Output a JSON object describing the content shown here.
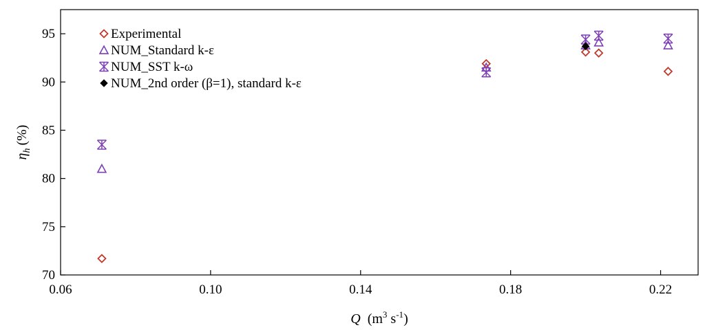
{
  "chart_data": {
    "type": "scatter",
    "title": "",
    "xlabel": {
      "symbol": "Q",
      "text": "(m",
      "sup1": "3",
      "mid": " s",
      "sup2": "-1",
      "end": ")"
    },
    "ylabel": {
      "symbol": "η",
      "sub": "h",
      "text": "(%)"
    },
    "xlim": [
      0.06,
      0.23
    ],
    "ylim": [
      70,
      97.5
    ],
    "xticks": [
      0.06,
      0.1,
      0.14,
      0.18,
      0.22
    ],
    "xtick_labels": [
      "0.06",
      "0.10",
      "0.14",
      "0.18",
      "0.22"
    ],
    "yticks": [
      70,
      75,
      80,
      85,
      90,
      95
    ],
    "ytick_labels": [
      "70",
      "75",
      "80",
      "85",
      "90",
      "95"
    ],
    "grid": false,
    "legend_position": "top-left",
    "series": [
      {
        "name": "Experimental",
        "marker": "diamond",
        "color": "#c0392b",
        "points": [
          [
            0.071,
            71.7
          ],
          [
            0.1735,
            91.9
          ],
          [
            0.2,
            93.1
          ],
          [
            0.2035,
            93.0
          ],
          [
            0.222,
            91.1
          ]
        ]
      },
      {
        "name": "NUM_Standard k-ε",
        "marker": "triangle",
        "color": "#7d3fb5",
        "points": [
          [
            0.071,
            81.0
          ],
          [
            0.1735,
            91.5
          ],
          [
            0.2,
            93.8
          ],
          [
            0.2035,
            94.1
          ],
          [
            0.222,
            93.8
          ]
        ]
      },
      {
        "name": "NUM_SST k-ω",
        "marker": "asterisk",
        "color": "#7d3fb5",
        "points": [
          [
            0.071,
            83.5
          ],
          [
            0.1735,
            91.0
          ],
          [
            0.2,
            94.4
          ],
          [
            0.2035,
            94.8
          ],
          [
            0.222,
            94.5
          ]
        ]
      },
      {
        "name": "NUM_2nd order (β=1), standard k-ε",
        "marker": "filled-diamond",
        "color": "#000000",
        "points": [
          [
            0.2,
            93.7
          ]
        ]
      }
    ]
  }
}
